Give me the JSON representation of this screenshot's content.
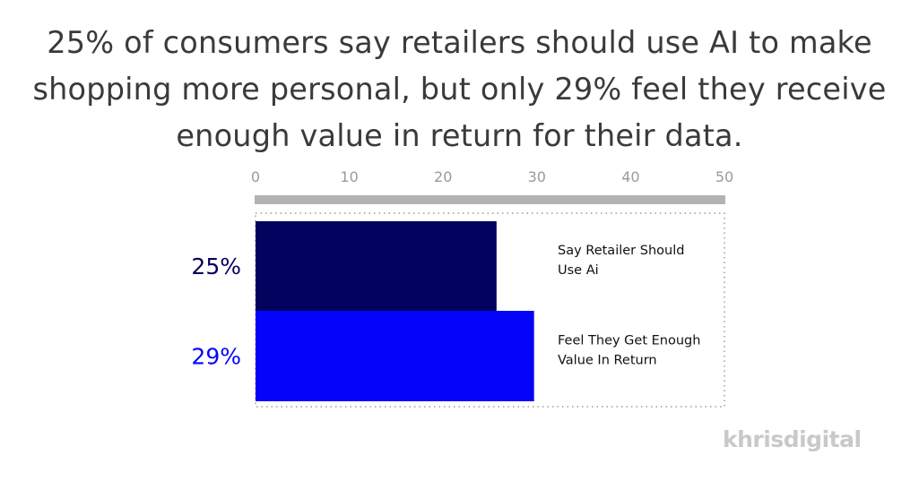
{
  "title": "25% of consumers say retailers should use AI to make shopping more personal, but only 29% feel they receive enough value in return for their data.",
  "logo": "khrisdigital",
  "colors": {
    "bar1": "#02025f",
    "bar2": "#0404fb",
    "axis": "#b3b3b3",
    "tick": "#9a9a9a",
    "border": "#9c9c9c"
  },
  "chart_data": {
    "type": "bar",
    "orientation": "horizontal",
    "xlim": [
      0,
      50
    ],
    "ticks": [
      0,
      10,
      20,
      30,
      40,
      50
    ],
    "categories": [
      "Say Retailer Should Use Ai",
      "Feel They Get Enough Value In Return"
    ],
    "values": [
      25,
      29
    ],
    "value_labels": [
      "25%",
      "29%"
    ],
    "title": "25% of consumers say retailers should use AI to make shopping more personal, but only 29% feel they receive enough value in return for their data.",
    "grid": false
  }
}
